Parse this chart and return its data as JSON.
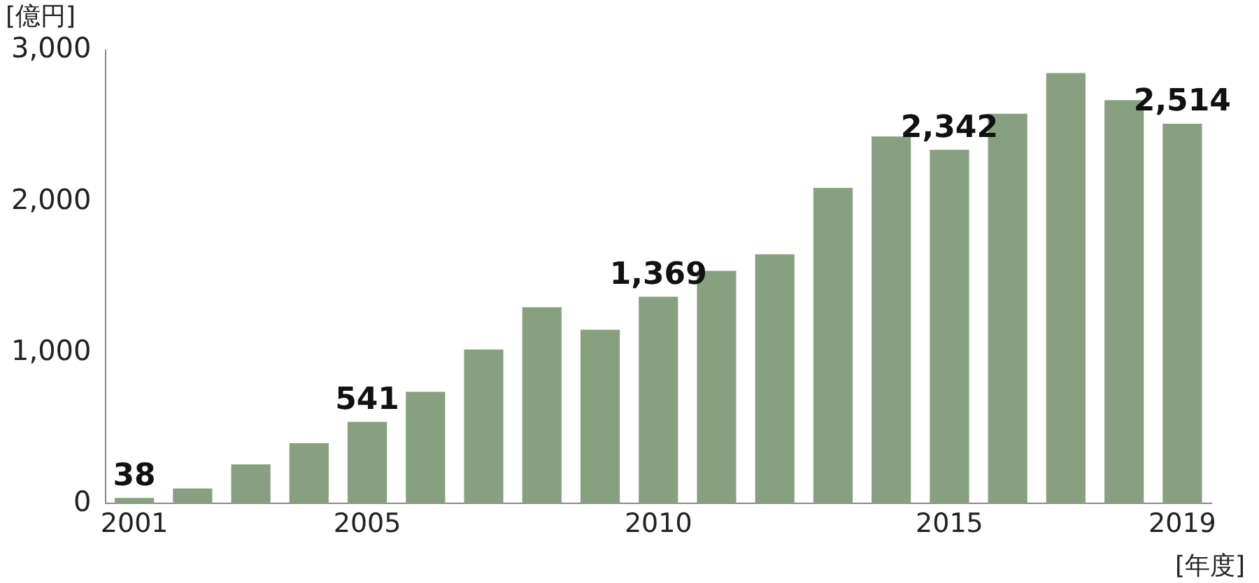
{
  "chart_data": {
    "type": "bar",
    "ylabel": "[億円]",
    "xlabel": "[年度]",
    "categories": [
      "2001",
      null,
      null,
      null,
      "2005",
      null,
      null,
      null,
      null,
      "2010",
      null,
      null,
      null,
      null,
      "2015",
      null,
      null,
      null,
      "2019"
    ],
    "values": [
      38,
      100,
      260,
      400,
      541,
      740,
      1020,
      1300,
      1150,
      1369,
      1540,
      1650,
      2090,
      2430,
      2342,
      2580,
      2850,
      2670,
      2514
    ],
    "value_labels": [
      "38",
      null,
      null,
      null,
      "541",
      null,
      null,
      null,
      null,
      "1,369",
      null,
      null,
      null,
      null,
      "2,342",
      null,
      null,
      null,
      "2,514"
    ],
    "color": "#87a080",
    "ylim": [
      0,
      3000
    ],
    "yticks": [
      {
        "value": 0,
        "label": "0"
      },
      {
        "value": 1000,
        "label": "1,000"
      },
      {
        "value": 2000,
        "label": "2,000"
      },
      {
        "value": 3000,
        "label": "3,000"
      }
    ],
    "grid": false,
    "legend": false
  }
}
